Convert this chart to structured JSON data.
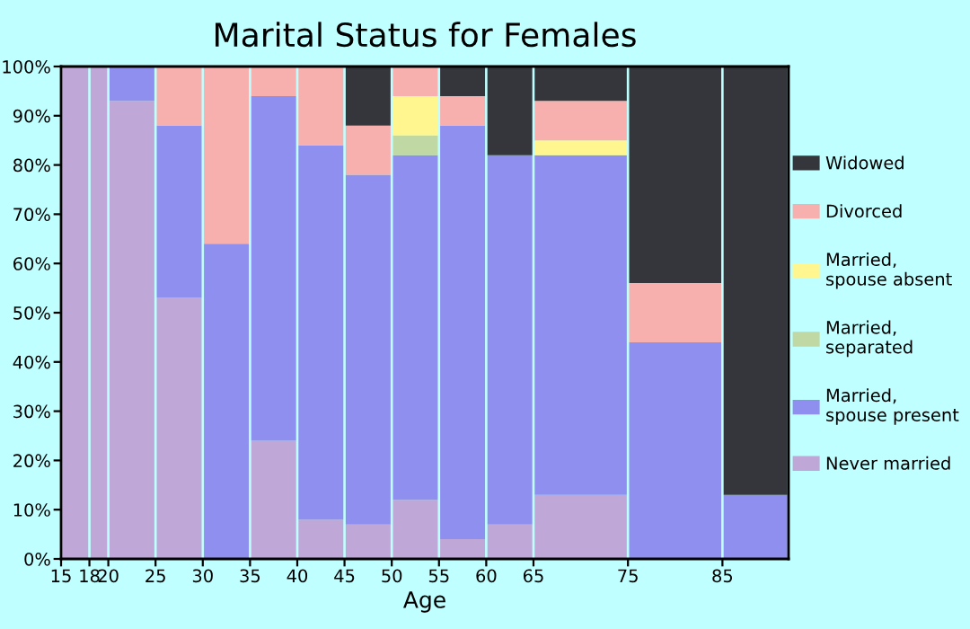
{
  "chart_data": {
    "type": "bar",
    "title": "Marital Status for Females",
    "xlabel": "Age",
    "stacked": true,
    "x": [
      16.5,
      19,
      22.5,
      27.5,
      32.5,
      37.5,
      42.5,
      47.5,
      52.5,
      57.5,
      62.5,
      70,
      80,
      88.5
    ],
    "series": [
      {
        "name": "Never married",
        "color": "#bfa8d8",
        "values": [
          100,
          100,
          93,
          53,
          0,
          24,
          8,
          7,
          12,
          4,
          7,
          13,
          0,
          0
        ]
      },
      {
        "name": "Married,\nspouse present",
        "color": "#8f8ff0",
        "values": [
          0,
          0,
          7,
          35,
          64,
          70,
          76,
          71,
          70,
          84,
          75,
          69,
          44,
          13
        ]
      },
      {
        "name": "Married,\nseparated",
        "color": "#c0d9a4",
        "values": [
          0,
          0,
          0,
          0,
          0,
          0,
          0,
          0,
          4,
          0,
          0,
          0,
          0,
          0
        ]
      },
      {
        "name": "Married,\nspouse absent",
        "color": "#fff68f",
        "values": [
          0,
          0,
          0,
          0,
          0,
          0,
          0,
          0,
          8,
          0,
          0,
          3,
          0,
          0
        ]
      },
      {
        "name": "Divorced",
        "color": "#f8b0ae",
        "values": [
          0,
          0,
          0,
          12,
          36,
          6,
          16,
          10,
          6,
          6,
          0,
          8,
          12,
          0
        ]
      },
      {
        "name": "Widowed",
        "color": "#35363b",
        "values": [
          0,
          0,
          0,
          0,
          0,
          0,
          0,
          12,
          0,
          6,
          18,
          7,
          44,
          87
        ]
      }
    ],
    "xlim": [
      15,
      92
    ],
    "xticks": [
      15,
      18,
      20,
      25,
      30,
      35,
      40,
      45,
      50,
      55,
      60,
      65,
      75,
      85
    ],
    "ylim": [
      0,
      100
    ],
    "yticks": [
      {
        "value": 0,
        "label": "0%"
      },
      {
        "value": 10,
        "label": "10%"
      },
      {
        "value": 20,
        "label": "20%"
      },
      {
        "value": 30,
        "label": "30%"
      },
      {
        "value": 40,
        "label": "40%"
      },
      {
        "value": 50,
        "label": "50%"
      },
      {
        "value": 60,
        "label": "60%"
      },
      {
        "value": 70,
        "label": "70%"
      },
      {
        "value": 80,
        "label": "80%"
      },
      {
        "value": 90,
        "label": "90%"
      },
      {
        "value": 100,
        "label": "100%"
      }
    ],
    "legend": "right"
  }
}
